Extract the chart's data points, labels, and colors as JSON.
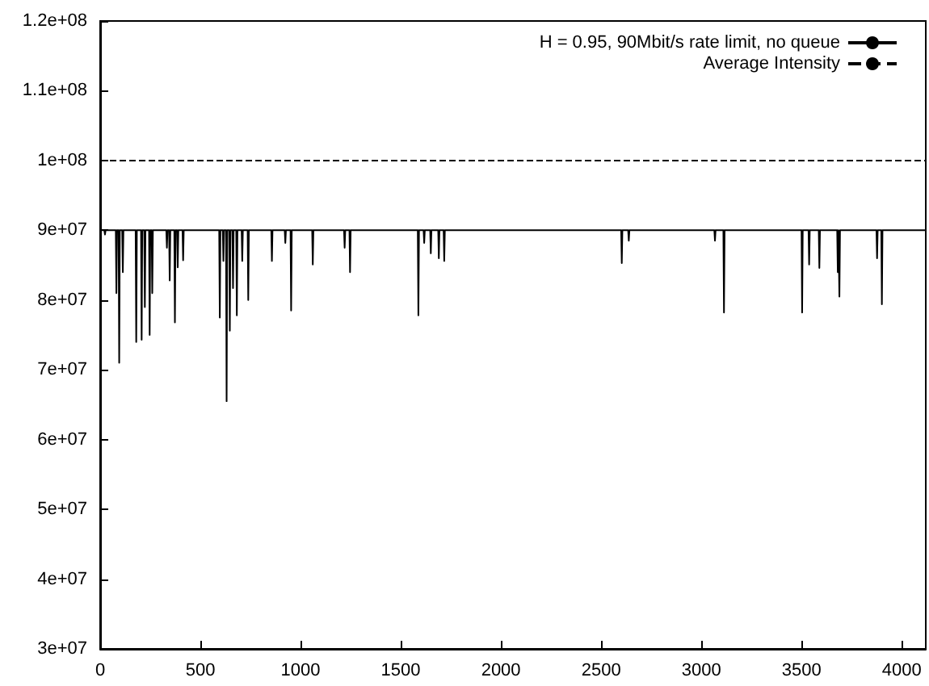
{
  "chart_data": {
    "type": "line",
    "xlim": [
      0,
      4120
    ],
    "xticks": [
      0,
      500,
      1000,
      1500,
      2000,
      2500,
      3000,
      3500,
      4000
    ],
    "ylim": [
      30000000,
      120000000
    ],
    "yticks": [
      {
        "value": 30000000,
        "label": "3e+07"
      },
      {
        "value": 40000000,
        "label": "4e+07"
      },
      {
        "value": 50000000,
        "label": "5e+07"
      },
      {
        "value": 60000000,
        "label": "6e+07"
      },
      {
        "value": 70000000,
        "label": "7e+07"
      },
      {
        "value": 80000000,
        "label": "8e+07"
      },
      {
        "value": 90000000,
        "label": "9e+07"
      },
      {
        "value": 100000000,
        "label": "1e+08"
      },
      {
        "value": 110000000,
        "label": "1.1e+08"
      },
      {
        "value": 120000000,
        "label": "1.2e+08"
      }
    ],
    "legend": "top right",
    "grid": false,
    "marker": "none",
    "series": [
      {
        "name": "H = 0.95, 90Mbit/s rate limit, no queue",
        "color": "#000000",
        "line_style": "solid",
        "x": [
          0,
          21,
          24,
          27,
          78,
          81,
          84,
          92,
          95,
          98,
          110,
          113,
          116,
          177,
          180,
          183,
          204,
          207,
          210,
          220,
          223,
          226,
          244,
          247,
          250,
          257,
          260,
          263,
          330,
          333,
          336,
          344,
          347,
          350,
          370,
          373,
          376,
          384,
          387,
          390,
          411,
          414,
          417,
          594,
          597,
          600,
          612,
          615,
          618,
          628,
          631,
          634,
          644,
          647,
          650,
          660,
          663,
          666,
          679,
          682,
          685,
          706,
          709,
          712,
          736,
          739,
          742,
          854,
          857,
          860,
          921,
          924,
          927,
          950,
          953,
          956,
          1058,
          1061,
          1064,
          1217,
          1220,
          1223,
          1244,
          1247,
          1250,
          1585,
          1588,
          1591,
          1614,
          1617,
          1620,
          1647,
          1650,
          1653,
          1687,
          1690,
          1693,
          1714,
          1717,
          1720,
          2600,
          2603,
          2606,
          2635,
          2638,
          2641,
          3065,
          3068,
          3071,
          3110,
          3113,
          3116,
          3500,
          3503,
          3506,
          3535,
          3538,
          3541,
          3586,
          3589,
          3592,
          3678,
          3681,
          3684,
          3686,
          3689,
          3692,
          3874,
          3877,
          3880,
          3898,
          3901,
          3904,
          4120
        ],
        "values": [
          90000000,
          90000000,
          89400000,
          90000000,
          90000000,
          81000000,
          90000000,
          90000000,
          71000000,
          90000000,
          90000000,
          84000000,
          90000000,
          90000000,
          74000000,
          90000000,
          90000000,
          74300000,
          90000000,
          90000000,
          79000000,
          90000000,
          90000000,
          75000000,
          90000000,
          90000000,
          81000000,
          90000000,
          90000000,
          87500000,
          90000000,
          90000000,
          82800000,
          90000000,
          90000000,
          76800000,
          90000000,
          90000000,
          84700000,
          90000000,
          90000000,
          85700000,
          90000000,
          90000000,
          77500000,
          90000000,
          90000000,
          85600000,
          90000000,
          90000000,
          65500000,
          90000000,
          90000000,
          75600000,
          90000000,
          90000000,
          81700000,
          90000000,
          90000000,
          77800000,
          90000000,
          90000000,
          85600000,
          90000000,
          90000000,
          80000000,
          90000000,
          90000000,
          85600000,
          90000000,
          90000000,
          88200000,
          90000000,
          90000000,
          78500000,
          90000000,
          90000000,
          85100000,
          90000000,
          90000000,
          87500000,
          90000000,
          90000000,
          84000000,
          90000000,
          90000000,
          77800000,
          90000000,
          90000000,
          88200000,
          90000000,
          90000000,
          86700000,
          90000000,
          90000000,
          86000000,
          90000000,
          90000000,
          85600000,
          90000000,
          90000000,
          85300000,
          90000000,
          90000000,
          88500000,
          90000000,
          90000000,
          88500000,
          90000000,
          90000000,
          78200000,
          90000000,
          90000000,
          78200000,
          90000000,
          90000000,
          85100000,
          90000000,
          90000000,
          84600000,
          90000000,
          90000000,
          84000000,
          90000000,
          90000000,
          80500000,
          90000000,
          90000000,
          86000000,
          90000000,
          90000000,
          79400000,
          90000000,
          90000000
        ]
      },
      {
        "name": "Average Intensity",
        "color": "#000000",
        "line_style": "dashed",
        "x": [
          0,
          4120
        ],
        "values": [
          100000000,
          100000000
        ]
      }
    ]
  }
}
